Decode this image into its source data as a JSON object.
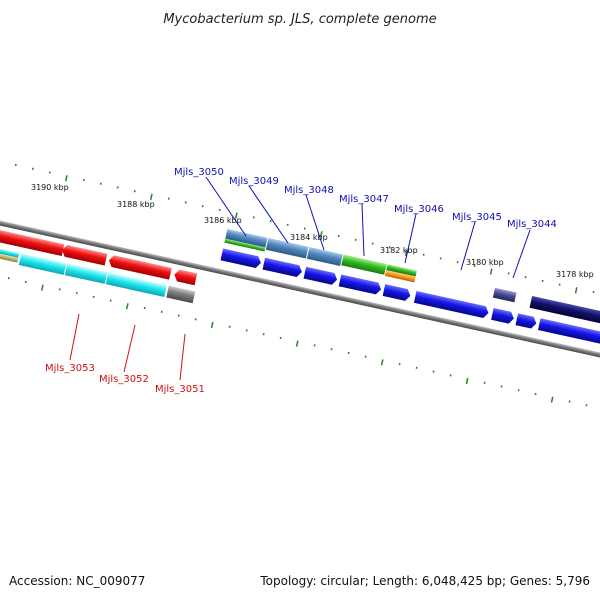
{
  "title": "Mycobacterium sp. JLS, complete genome",
  "footer": {
    "accession": "Accession: NC_009077",
    "summary": "Topology: circular; Length: 6,048,425 bp; Genes: 5,796"
  },
  "colors": {
    "backbone": "#8a8a8a",
    "tick": "#2f8a2f",
    "label_forward": "#1010b0",
    "label_reverse": "#d01010",
    "red_cds": "#ee1111",
    "cyan_cds": "#22e8ee",
    "blue_cds": "#1515e6",
    "navy_cds": "#10106a",
    "green_cds": "#33bb22",
    "steel_cds": "#4f86bb"
  },
  "chart_data": {
    "type": "genome-map",
    "ticks": [
      {
        "label": "3190 kbp"
      },
      {
        "label": "3188 kbp"
      },
      {
        "label": "3186 kbp"
      },
      {
        "label": "3184 kbp"
      },
      {
        "label": "3182 kbp"
      },
      {
        "label": "3180 kbp"
      },
      {
        "label": "3178 kbp"
      }
    ],
    "forward_genes": [
      {
        "label": "Mjls_3050"
      },
      {
        "label": "Mjls_3049"
      },
      {
        "label": "Mjls_3048"
      },
      {
        "label": "Mjls_3047"
      },
      {
        "label": "Mjls_3046"
      },
      {
        "label": "Mjls_3045"
      },
      {
        "label": "Mjls_3044"
      }
    ],
    "reverse_genes": [
      {
        "label": "Mjls_3053"
      },
      {
        "label": "Mjls_3052"
      },
      {
        "label": "Mjls_3051"
      }
    ]
  }
}
